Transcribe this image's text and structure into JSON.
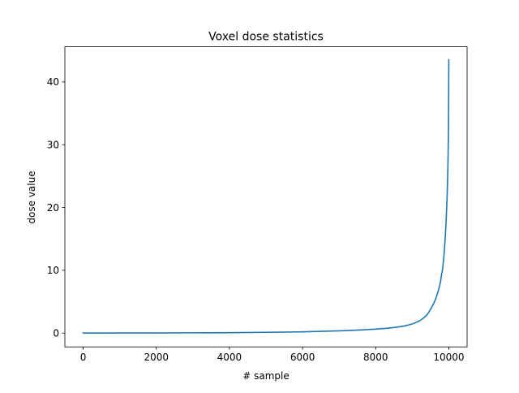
{
  "chart_data": {
    "type": "line",
    "title": "Voxel dose statistics",
    "xlabel": "# sample",
    "ylabel": "dose value",
    "xlim": [
      -500,
      10500
    ],
    "ylim": [
      -2.2,
      45.6
    ],
    "xticks": [
      0,
      2000,
      4000,
      6000,
      8000,
      10000
    ],
    "yticks": [
      0,
      10,
      20,
      30,
      40
    ],
    "grid": false,
    "legend": "none",
    "line_color": "#1f77b4",
    "series": [
      {
        "x": [
          0,
          1000,
          2000,
          3000,
          4000,
          5000,
          6000,
          6500,
          7000,
          7500,
          8000,
          8300,
          8600,
          8800,
          9000,
          9100,
          9200,
          9300,
          9400,
          9450,
          9500,
          9550,
          9600,
          9650,
          9700,
          9750,
          9780,
          9800,
          9820,
          9850,
          9870,
          9890,
          9910,
          9930,
          9950,
          9965,
          9980,
          9990,
          9995,
          10000
        ],
        "y": [
          0,
          0.01,
          0.02,
          0.04,
          0.07,
          0.12,
          0.2,
          0.27,
          0.36,
          0.47,
          0.63,
          0.76,
          0.95,
          1.15,
          1.45,
          1.68,
          1.95,
          2.35,
          2.9,
          3.3,
          3.8,
          4.3,
          4.9,
          5.6,
          6.5,
          7.6,
          8.4,
          9.3,
          9.8,
          11.3,
          12.6,
          14.2,
          16.0,
          18.3,
          21.2,
          24.0,
          28.0,
          32.0,
          37.0,
          43.5
        ]
      }
    ]
  }
}
